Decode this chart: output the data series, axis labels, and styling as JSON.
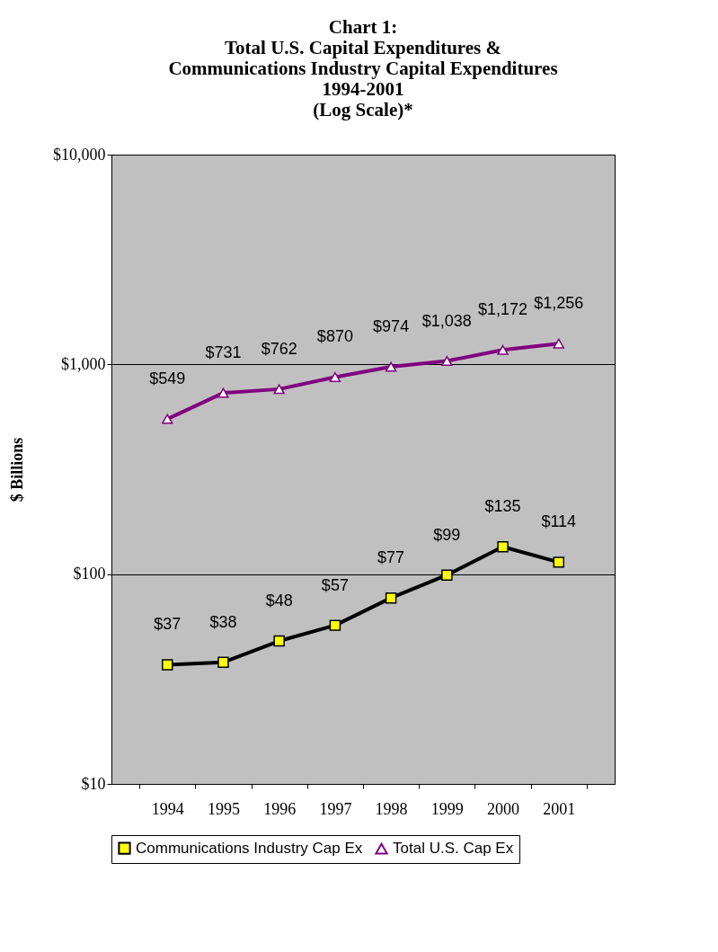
{
  "chart_data": {
    "type": "line",
    "title": [
      "Chart 1:",
      "Total U.S. Capital Expenditures &",
      "Communications Industry Capital Expenditures",
      "1994-2001",
      "(Log Scale)*"
    ],
    "ylabel": "$ Billions",
    "categories": [
      "1994",
      "1995",
      "1996",
      "1997",
      "1998",
      "1999",
      "2000",
      "2001"
    ],
    "series": [
      {
        "name": "Communications Industry Cap Ex",
        "color": "#000000",
        "marker": "square",
        "values": [
          37,
          38,
          48,
          57,
          77,
          99,
          135,
          114
        ],
        "value_labels": [
          "$37",
          "$38",
          "$48",
          "$57",
          "$77",
          "$99",
          "$135",
          "$114"
        ]
      },
      {
        "name": "Total U.S. Cap Ex",
        "color": "#800080",
        "marker": "triangle",
        "values": [
          549,
          731,
          762,
          870,
          974,
          1038,
          1172,
          1256
        ],
        "value_labels": [
          "$549",
          "$731",
          "$762",
          "$870",
          "$974",
          "$1,038",
          "$1,172",
          "$1,256"
        ]
      }
    ],
    "log": true,
    "ylim": [
      10,
      10000
    ],
    "yticks": [
      {
        "value": 10,
        "label": "$10"
      },
      {
        "value": 100,
        "label": "$100"
      },
      {
        "value": 1000,
        "label": "$1,000"
      },
      {
        "value": 10000,
        "label": "$10,000"
      }
    ],
    "grid": "y",
    "legend": "bottom"
  }
}
